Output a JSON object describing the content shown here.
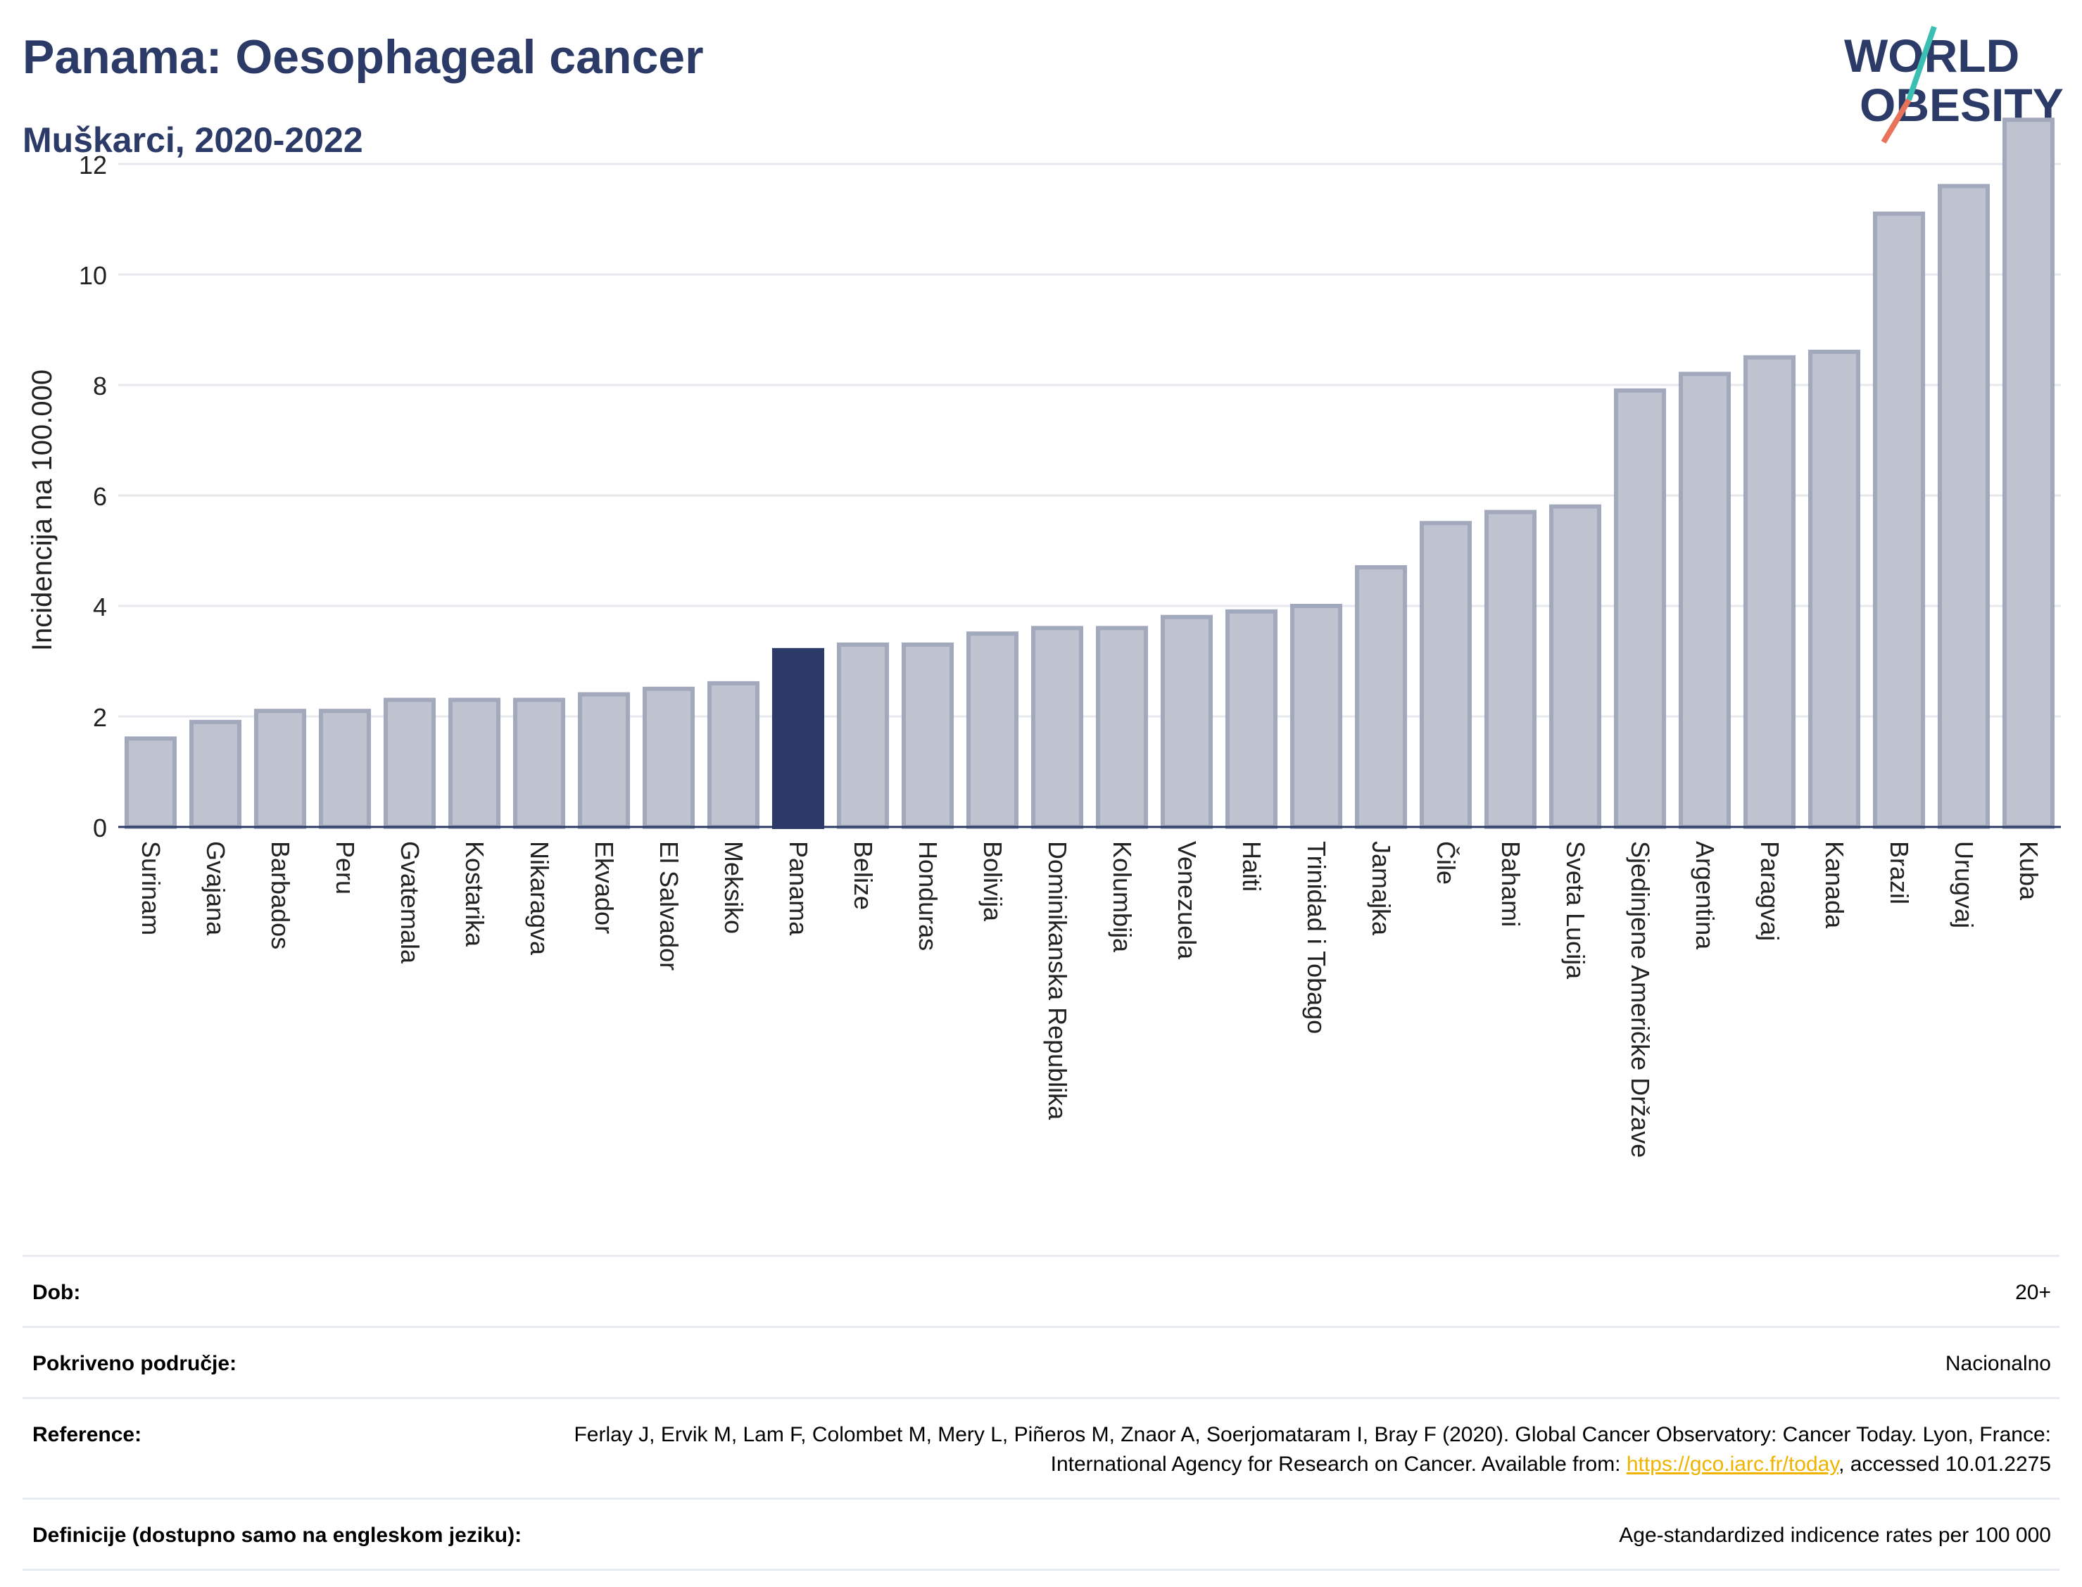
{
  "header": {
    "title": "Panama: Oesophageal cancer",
    "subtitle": "Muškarci, 2020-2022"
  },
  "logo": {
    "line1": "WORLD",
    "line2": "OBESITY",
    "colors": {
      "text": "#2b3a67",
      "slash_top": "#3bbfb2",
      "slash_bottom": "#e8735a"
    }
  },
  "chart_data": {
    "type": "bar",
    "ylabel": "Incidencija na 100.000",
    "ylim": [
      0,
      13
    ],
    "yticks": [
      0,
      2,
      4,
      6,
      8,
      10,
      12
    ],
    "grid": true,
    "highlight": "Panama",
    "colors": {
      "bar": "#bfc3d0",
      "bar_border": "#a3a9bd",
      "highlight": "#2b3a67",
      "grid": "#e6e8ee",
      "axis": "#2b3a67"
    },
    "categories": [
      "Surinam",
      "Gvajana",
      "Barbados",
      "Peru",
      "Gvatemala",
      "Kostarika",
      "Nikaragva",
      "Ekvador",
      "El Salvador",
      "Meksiko",
      "Panama",
      "Belize",
      "Honduras",
      "Bolivija",
      "Dominikanska Republika",
      "Kolumbija",
      "Venezuela",
      "Haiti",
      "Trinidad i Tobago",
      "Jamajka",
      "Čile",
      "Bahami",
      "Sveta Lucija",
      "Sjedinjene Američke Države",
      "Argentina",
      "Paragvaj",
      "Kanada",
      "Brazil",
      "Urugvaj",
      "Kuba"
    ],
    "values": [
      1.6,
      1.9,
      2.1,
      2.1,
      2.3,
      2.3,
      2.3,
      2.4,
      2.5,
      2.6,
      3.2,
      3.3,
      3.3,
      3.5,
      3.6,
      3.6,
      3.8,
      3.9,
      4.0,
      4.7,
      5.5,
      5.7,
      5.8,
      7.9,
      8.2,
      8.5,
      8.6,
      11.1,
      11.6,
      12.8
    ]
  },
  "meta": [
    {
      "label": "Dob:",
      "value": "20+"
    },
    {
      "label": "Pokriveno područje:",
      "value": "Nacionalno"
    },
    {
      "label": "Reference:",
      "value_pre": "Ferlay J, Ervik M, Lam F, Colombet M, Mery L, Piñeros M, Znaor A, Soerjomataram I, Bray F (2020). Global Cancer Observatory: Cancer Today. Lyon, France: International Agency for Research on Cancer. Available from: ",
      "link": "https://gco.iarc.fr/today",
      "value_post": ", accessed 10.01.2275"
    },
    {
      "label": "Definicije (dostupno samo na engleskom jeziku):",
      "value": "Age-standardized indicence rates per 100 000"
    }
  ]
}
